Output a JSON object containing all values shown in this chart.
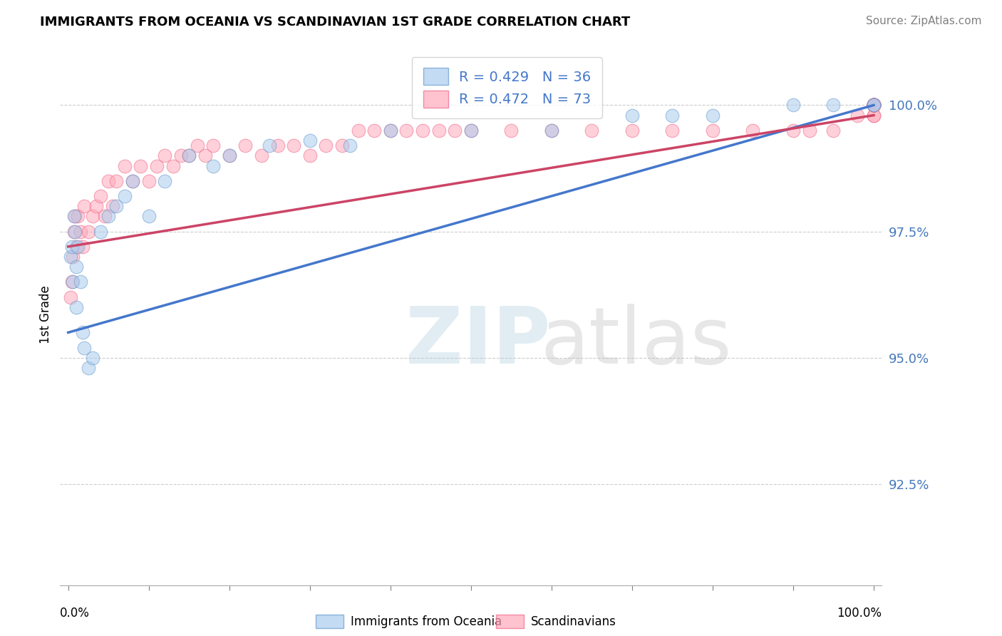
{
  "title": "IMMIGRANTS FROM OCEANIA VS SCANDINAVIAN 1ST GRADE CORRELATION CHART",
  "source": "Source: ZipAtlas.com",
  "ylabel": "1st Grade",
  "legend_blue_label": "Immigrants from Oceania",
  "legend_pink_label": "Scandinavians",
  "R_blue": 0.429,
  "N_blue": 36,
  "R_pink": 0.472,
  "N_pink": 73,
  "blue_fill_color": "#AACCEE",
  "pink_fill_color": "#FFAABB",
  "blue_edge_color": "#6699CC",
  "pink_edge_color": "#EE6688",
  "blue_line_color": "#4477CC",
  "pink_line_color": "#CC4466",
  "yticks": [
    92.5,
    95.0,
    97.5,
    100.0
  ],
  "ylim": [
    90.5,
    101.2
  ],
  "xlim": [
    -1,
    101
  ],
  "blue_scatter_x": [
    0.3,
    0.5,
    0.6,
    0.7,
    0.8,
    1.0,
    1.0,
    1.2,
    1.5,
    1.8,
    2.0,
    2.5,
    3.0,
    4.0,
    5.0,
    6.0,
    7.0,
    8.0,
    10.0,
    12.0,
    15.0,
    18.0,
    20.0,
    25.0,
    30.0,
    35.0,
    40.0,
    50.0,
    60.0,
    70.0,
    75.0,
    80.0,
    90.0,
    95.0,
    100.0,
    100.0
  ],
  "blue_scatter_y": [
    97.0,
    97.2,
    96.5,
    97.8,
    97.5,
    96.0,
    96.8,
    97.2,
    96.5,
    95.5,
    95.2,
    94.8,
    95.0,
    97.5,
    97.8,
    98.0,
    98.2,
    98.5,
    97.8,
    98.5,
    99.0,
    98.8,
    99.0,
    99.2,
    99.3,
    99.2,
    99.5,
    99.5,
    99.5,
    99.8,
    99.8,
    99.8,
    100.0,
    100.0,
    100.0,
    100.0
  ],
  "pink_scatter_x": [
    0.3,
    0.5,
    0.6,
    0.7,
    0.8,
    1.0,
    1.2,
    1.5,
    1.8,
    2.0,
    2.5,
    3.0,
    3.5,
    4.0,
    4.5,
    5.0,
    5.5,
    6.0,
    7.0,
    8.0,
    9.0,
    10.0,
    11.0,
    12.0,
    13.0,
    14.0,
    15.0,
    16.0,
    17.0,
    18.0,
    20.0,
    22.0,
    24.0,
    26.0,
    28.0,
    30.0,
    32.0,
    34.0,
    36.0,
    38.0,
    40.0,
    42.0,
    44.0,
    46.0,
    48.0,
    50.0,
    55.0,
    60.0,
    65.0,
    70.0,
    75.0,
    80.0,
    85.0,
    90.0,
    92.0,
    95.0,
    98.0,
    100.0,
    100.0,
    100.0,
    100.0,
    100.0,
    100.0,
    100.0,
    100.0,
    100.0,
    100.0,
    100.0,
    100.0,
    100.0,
    100.0,
    100.0,
    100.0
  ],
  "pink_scatter_y": [
    96.2,
    96.5,
    97.0,
    97.5,
    97.8,
    97.2,
    97.8,
    97.5,
    97.2,
    98.0,
    97.5,
    97.8,
    98.0,
    98.2,
    97.8,
    98.5,
    98.0,
    98.5,
    98.8,
    98.5,
    98.8,
    98.5,
    98.8,
    99.0,
    98.8,
    99.0,
    99.0,
    99.2,
    99.0,
    99.2,
    99.0,
    99.2,
    99.0,
    99.2,
    99.2,
    99.0,
    99.2,
    99.2,
    99.5,
    99.5,
    99.5,
    99.5,
    99.5,
    99.5,
    99.5,
    99.5,
    99.5,
    99.5,
    99.5,
    99.5,
    99.5,
    99.5,
    99.5,
    99.5,
    99.5,
    99.5,
    99.8,
    99.8,
    99.8,
    100.0,
    100.0,
    100.0,
    100.0,
    100.0,
    100.0,
    100.0,
    100.0,
    100.0,
    100.0,
    100.0,
    100.0,
    100.0,
    100.0
  ],
  "blue_line_x0": 0,
  "blue_line_x1": 100,
  "blue_line_y0": 95.5,
  "blue_line_y1": 100.0,
  "pink_line_x0": 0,
  "pink_line_x1": 100,
  "pink_line_y0": 97.2,
  "pink_line_y1": 99.8
}
